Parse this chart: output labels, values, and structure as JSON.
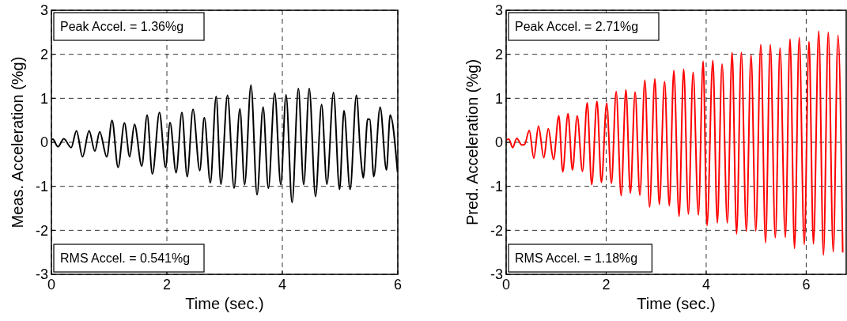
{
  "chart_data": [
    {
      "type": "line",
      "xlabel": "Time (sec.)",
      "ylabel": "Meas. Acceleration (%g)",
      "xlim": [
        0,
        6
      ],
      "xticks": [
        0,
        2,
        4,
        6
      ],
      "ylim": [
        -3,
        3
      ],
      "yticks": [
        -3,
        -2,
        -1,
        0,
        1,
        2,
        3
      ],
      "grid": true,
      "line_style": "solid",
      "annotations": [
        "Peak Accel. = 1.36%g",
        "RMS Accel. = 0.541%g"
      ],
      "series": [
        {
          "color": "#000000",
          "x": [
            0,
            0.023,
            0.114,
            0.215,
            0.342,
            0.434,
            0.539,
            0.653,
            0.753,
            0.836,
            0.959,
            1.05,
            1.155,
            1.265,
            1.356,
            1.438,
            1.566,
            1.658,
            1.749,
            1.872,
            1.977,
            2.055,
            2.16,
            2.26,
            2.352,
            2.452,
            2.57,
            2.648,
            2.753,
            2.854,
            2.936,
            3.05,
            3.164,
            3.265,
            3.347,
            3.457,
            3.562,
            3.667,
            3.758,
            3.868,
            3.973,
            4.064,
            4.169,
            4.278,
            4.37,
            4.466,
            4.575,
            4.68,
            4.772,
            4.886,
            4.991,
            5.068,
            5.174,
            5.283,
            5.356,
            5.402,
            5.479,
            5.516,
            5.584,
            5.694,
            5.804,
            5.868,
            5.995
          ],
          "values": [
            0.05,
            0.07,
            -0.1,
            0.08,
            -0.12,
            0.26,
            -0.33,
            0.26,
            -0.2,
            0.24,
            -0.33,
            0.5,
            -0.57,
            0.44,
            -0.33,
            0.41,
            -0.54,
            0.62,
            -0.72,
            0.68,
            -0.57,
            0.45,
            -0.69,
            0.68,
            -0.78,
            0.75,
            -0.64,
            0.56,
            -0.92,
            1.04,
            -0.95,
            1.07,
            -1.04,
            0.76,
            -0.96,
            1.3,
            -1.19,
            0.8,
            -1.04,
            1.12,
            -0.96,
            1.08,
            -1.37,
            1.22,
            -0.96,
            1.22,
            -1.23,
            0.86,
            -0.95,
            1.13,
            -1.07,
            0.72,
            -1.07,
            1.07,
            -0.31,
            -0.81,
            0.53,
            0.52,
            -0.78,
            0.8,
            -0.63,
            0.62,
            -0.67
          ]
        }
      ]
    },
    {
      "type": "line",
      "xlabel": "Time (sec.)",
      "ylabel": "Pred. Acceleration (%g)",
      "xlim": [
        0,
        6.8
      ],
      "xticks": [
        0,
        2,
        4,
        6
      ],
      "ylim": [
        -3,
        3
      ],
      "yticks": [
        -3,
        -2,
        -1,
        0,
        1,
        2,
        3
      ],
      "grid": true,
      "line_style": "solid",
      "annotations": [
        "Peak Accel. = 2.71%g",
        "RMS Accel. = 1.18%g"
      ],
      "series": [
        {
          "color": "#ff0000",
          "x": [
            0,
            0.053,
            0.132,
            0.211,
            0.316,
            0.368,
            0.463,
            0.553,
            0.647,
            0.753,
            0.842,
            0.947,
            1.053,
            1.132,
            1.237,
            1.326,
            1.421,
            1.526,
            1.621,
            1.711,
            1.816,
            1.905,
            2.011,
            2.105,
            2.2,
            2.3,
            2.395,
            2.484,
            2.579,
            2.674,
            2.774,
            2.868,
            2.974,
            3.063,
            3.168,
            3.263,
            3.353,
            3.458,
            3.55,
            3.644,
            3.739,
            3.844,
            3.939,
            4.017,
            4.133,
            4.223,
            4.318,
            4.423,
            4.518,
            4.608,
            4.703,
            4.803,
            4.897,
            4.992,
            5.092,
            5.187,
            5.282,
            5.382,
            5.477,
            5.582,
            5.677,
            5.766,
            5.861,
            5.961,
            6.056,
            6.145,
            6.251,
            6.345,
            6.441,
            6.541,
            6.636,
            6.73
          ],
          "values": [
            0.06,
            0.07,
            -0.12,
            0.09,
            -0.06,
            -0.05,
            0.27,
            -0.36,
            0.37,
            -0.35,
            0.31,
            -0.39,
            0.6,
            -0.67,
            0.65,
            -0.63,
            0.6,
            -0.66,
            0.9,
            -0.96,
            0.93,
            -0.91,
            0.89,
            -0.93,
            1.15,
            -1.21,
            1.19,
            -1.15,
            1.14,
            -1.2,
            1.41,
            -1.47,
            1.44,
            -1.41,
            1.38,
            -1.44,
            1.63,
            -1.68,
            1.66,
            -1.63,
            1.59,
            -1.65,
            1.84,
            -1.89,
            1.86,
            -1.83,
            1.78,
            -1.83,
            2.04,
            -2.08,
            2.04,
            -2.02,
            1.98,
            -2.01,
            2.22,
            -2.28,
            2.22,
            -2.17,
            2.14,
            -2.16,
            2.35,
            -2.41,
            2.38,
            -2.32,
            2.29,
            -2.31,
            2.53,
            -2.56,
            2.5,
            -2.49,
            2.43,
            -2.49
          ]
        }
      ]
    }
  ]
}
